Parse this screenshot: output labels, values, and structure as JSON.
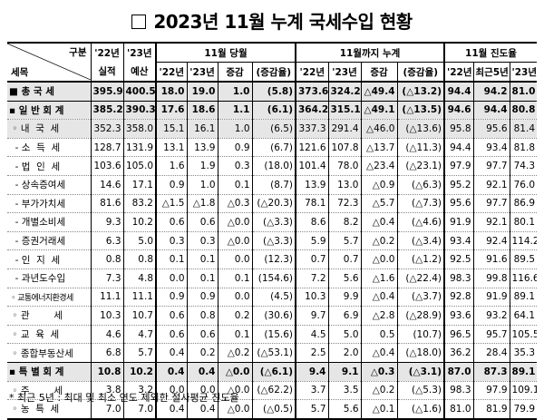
{
  "title": "2023년 11월 누계 국세수입 현황",
  "header": {
    "corner_top": "구분",
    "corner_bottom": "세목",
    "col_2022_1": "'22년",
    "col_2022_2": "실적",
    "col_2023_1": "'23년",
    "col_2023_2": "예산",
    "grp_month": "11월 당월",
    "grp_cum": "11월까지 누계",
    "grp_prog": "11월 진도율",
    "sub_22": "'22년",
    "sub_23": "'23년",
    "sub_change": "증감",
    "sub_rate": "(증감율)",
    "sub_recent5": "최근5년",
    "sub_prog23": "'23년"
  },
  "rows": [
    {
      "label": "■ 총 국 세",
      "c": [
        "395.9",
        "400.5",
        "18.0",
        "19.0",
        "1.0",
        "(5.8)",
        "373.6",
        "324.2",
        "△49.4",
        "(△13.2)",
        "94.4",
        "94.2",
        "81.0"
      ]
    },
    {
      "label": "▪ 일 반 회 계",
      "c": [
        "385.2",
        "390.3",
        "17.6",
        "18.6",
        "1.1",
        "(6.1)",
        "364.2",
        "315.1",
        "△49.1",
        "(△13.5)",
        "94.6",
        "94.4",
        "80.8"
      ]
    },
    {
      "label": " ◦ 내  국  세",
      "c": [
        "352.3",
        "358.0",
        "15.1",
        "16.1",
        "1.0",
        "(6.5)",
        "337.3",
        "291.4",
        "△46.0",
        "(△13.6)",
        "95.8",
        "95.6",
        "81.4"
      ]
    },
    {
      "label": "  - 소  득  세",
      "c": [
        "128.7",
        "131.9",
        "13.1",
        "13.9",
        "0.9",
        "(6.7)",
        "121.6",
        "107.8",
        "△13.7",
        "(△11.3)",
        "94.4",
        "93.4",
        "81.8"
      ]
    },
    {
      "label": "  - 법  인  세",
      "c": [
        "103.6",
        "105.0",
        "1.6",
        "1.9",
        "0.3",
        "(18.0)",
        "101.4",
        "78.0",
        "△23.4",
        "(△23.1)",
        "97.9",
        "97.7",
        "74.3"
      ]
    },
    {
      "label": "  - 상속증여세",
      "c": [
        "14.6",
        "17.1",
        "0.9",
        "1.0",
        "0.1",
        "(8.7)",
        "13.9",
        "13.0",
        "△0.9",
        "(△6.3)",
        "95.2",
        "92.1",
        "76.0"
      ]
    },
    {
      "label": "  - 부가가치세",
      "c": [
        "81.6",
        "83.2",
        "△1.5",
        "△1.8",
        "△0.3",
        "(△20.3)",
        "78.1",
        "72.3",
        "△5.7",
        "(△7.3)",
        "95.6",
        "97.7",
        "86.9"
      ]
    },
    {
      "label": "  - 개별소비세",
      "c": [
        "9.3",
        "10.2",
        "0.6",
        "0.6",
        "△0.0",
        "(△3.3)",
        "8.6",
        "8.2",
        "△0.4",
        "(△4.6)",
        "91.9",
        "92.1",
        "80.1"
      ]
    },
    {
      "label": "  - 증권거래세",
      "c": [
        "6.3",
        "5.0",
        "0.3",
        "0.3",
        "△0.0",
        "(△3.3)",
        "5.9",
        "5.7",
        "△0.2",
        "(△3.4)",
        "93.4",
        "92.4",
        "114.2"
      ]
    },
    {
      "label": "  - 인  지  세",
      "c": [
        "0.8",
        "0.8",
        "0.1",
        "0.1",
        "0.0",
        "(12.3)",
        "0.7",
        "0.7",
        "△0.0",
        "(△1.2)",
        "92.5",
        "91.6",
        "89.5"
      ]
    },
    {
      "label": "  - 과년도수입",
      "c": [
        "7.3",
        "4.8",
        "0.0",
        "0.1",
        "0.1",
        "(154.6)",
        "7.2",
        "5.6",
        "△1.6",
        "(△22.4)",
        "98.3",
        "99.8",
        "116.6"
      ]
    },
    {
      "label": " ◦ 교통에너지환경세",
      "c": [
        "11.1",
        "11.1",
        "0.9",
        "0.9",
        "0.0",
        "(4.5)",
        "10.3",
        "9.9",
        "△0.4",
        "(△3.7)",
        "92.8",
        "91.9",
        "89.1"
      ]
    },
    {
      "label": " ◦ 관        세",
      "c": [
        "10.3",
        "10.7",
        "0.6",
        "0.8",
        "0.2",
        "(30.6)",
        "9.7",
        "6.9",
        "△2.8",
        "(△28.9)",
        "93.6",
        "93.2",
        "64.1"
      ]
    },
    {
      "label": " ◦ 교  육  세",
      "c": [
        "4.6",
        "4.7",
        "0.6",
        "0.6",
        "0.1",
        "(15.6)",
        "4.5",
        "5.0",
        "0.5",
        "(10.7)",
        "96.5",
        "95.7",
        "105.5"
      ]
    },
    {
      "label": " ◦ 종합부동산세",
      "c": [
        "6.8",
        "5.7",
        "0.4",
        "0.2",
        "△0.2",
        "(△53.1)",
        "2.5",
        "2.0",
        "△0.4",
        "(△18.0)",
        "36.2",
        "28.4",
        "35.3"
      ]
    },
    {
      "label": "▪ 특 별 회 계",
      "c": [
        "10.8",
        "10.2",
        "0.4",
        "0.4",
        "△0.0",
        "(△6.1)",
        "9.4",
        "9.1",
        "△0.3",
        "(△3.1)",
        "87.0",
        "87.3",
        "89.1"
      ]
    },
    {
      "label": " ◦ 주        세",
      "c": [
        "3.8",
        "3.2",
        "0.0",
        "0.0",
        "△0.0",
        "(△62.2)",
        "3.7",
        "3.5",
        "△0.2",
        "(△5.3)",
        "98.3",
        "97.9",
        "109.1"
      ]
    },
    {
      "label": " ◦ 농  특  세",
      "c": [
        "7.0",
        "7.0",
        "0.4",
        "0.4",
        "△0.0",
        "(△0.5)",
        "5.7",
        "5.6",
        "△0.1",
        "(△1.6)",
        "81.0",
        "81.9",
        "79.9"
      ]
    }
  ],
  "footnote": "* 최근 5년 : 최대 및 최소 연도 제외한 절사평균 진도율"
}
